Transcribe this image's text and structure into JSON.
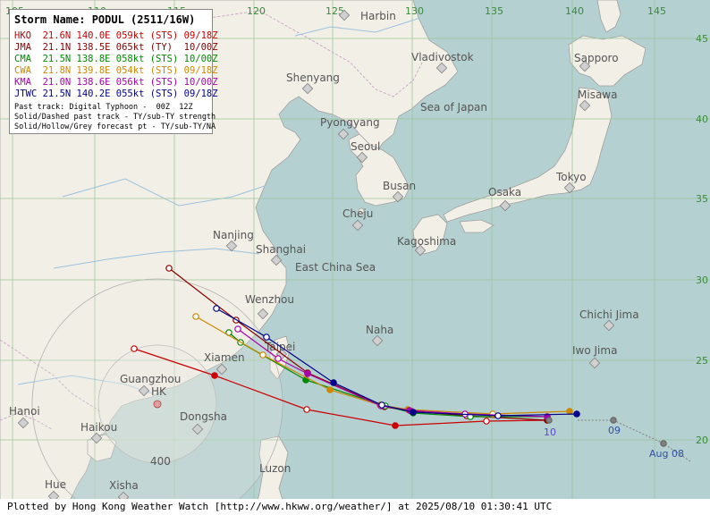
{
  "map": {
    "title": "Storm Name: PODUL (2511/16W)",
    "agencies": [
      {
        "agency": "HKO",
        "text": "21.6N 140.0E 059kt (STS) 09/18Z",
        "color": "#cc0000"
      },
      {
        "agency": "JMA",
        "text": "21.1N 138.5E 065kt (TY)  10/00Z",
        "color": "#880000"
      },
      {
        "agency": "CMA",
        "text": "21.5N 138.8E 058kt (STS) 10/00Z",
        "color": "#008800"
      },
      {
        "agency": "CWA",
        "text": "21.8N 139.8E 054kt (STS) 09/18Z",
        "color": "#cc8800"
      },
      {
        "agency": "KMA",
        "text": "21.0N 138.6E 056kt (STS) 10/00Z",
        "color": "#aa00aa"
      },
      {
        "agency": "JTWC",
        "text": "21.5N 140.2E 055kt (STS) 09/18Z",
        "color": "#000088"
      }
    ],
    "notes": [
      "Past track: Digital Typhoon -  00Z  12Z",
      "Solid/Dashed past track - TY/sub-TY strength",
      "Solid/Hollow/Grey forecast pt - TY/sub-TY/NA"
    ],
    "footer": "Plotted by Hong Kong Weather Watch [http://www.hkww.org/weather/] at 2025/08/10 01:30:41 UTC",
    "longitude_labels": [
      "105",
      "110",
      "115",
      "120",
      "125",
      "130",
      "135",
      "140",
      "145"
    ],
    "latitude_labels": [
      "45",
      "40",
      "35",
      "30",
      "25",
      "20"
    ],
    "places": [
      "Harbin",
      "Vladivostok",
      "Sapporo",
      "Shenyang",
      "Pyongyang",
      "Misawa",
      "Seoul",
      "Sea of Japan",
      "Busan",
      "Osaka",
      "Tokyo",
      "Cheju",
      "Nanjing",
      "Shanghai",
      "Kagoshima",
      "East China Sea",
      "Wenzhou",
      "Naha",
      "Chichi Jima",
      "Taipei",
      "Xiamen",
      "Iwo Jima",
      "Guangzhou",
      "HK",
      "Hanoi",
      "Dongsha",
      "Haikou",
      "Luzon",
      "Hue",
      "Xisha"
    ],
    "range_ring_label": "400",
    "past_track_labels": [
      "10",
      "09",
      "Aug 08"
    ],
    "colors": {
      "land": "#f2efe6",
      "sea": "#b5d0d0",
      "grid": "#9bc79b",
      "border": "#c9a8c9"
    }
  }
}
